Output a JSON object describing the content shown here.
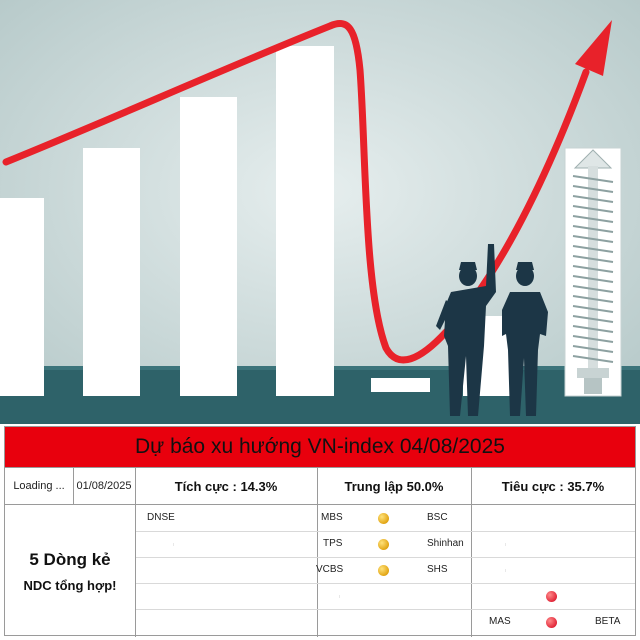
{
  "title": "Dự báo xu hướng VN-index 04/08/2025",
  "header": {
    "status": "Loading ...",
    "date": "01/08/2025",
    "positive": "Tích cực : 14.3%",
    "neutral": "Trung lập 50.0%",
    "negative": "Tiêu cực : 35.7%"
  },
  "note": {
    "line1": "5 Dòng kẻ",
    "line2": "NDC tổng hợp!"
  },
  "rows": {
    "positive": [
      "DNSE"
    ],
    "neutral": [
      {
        "left": "MBS",
        "right": "BSC",
        "dot": "gold"
      },
      {
        "left": "TPS",
        "right": "Shinhan",
        "dot": "gold"
      },
      {
        "left": "VCBS",
        "right": "SHS",
        "dot": "gold"
      }
    ],
    "negative": [
      {
        "left": "",
        "right": "",
        "dot": "red"
      },
      {
        "left": "MAS",
        "right": "BETA",
        "dot": "red"
      }
    ]
  },
  "colors": {
    "banner": "#e8000d",
    "sky": "#c9d7d7",
    "ground": "#2e6269",
    "bars": "#ffffff",
    "arrow": "#e8222a",
    "figures": "#1c3646",
    "neutral_dot": "#e2a514",
    "negative_dot": "#e2283a"
  }
}
